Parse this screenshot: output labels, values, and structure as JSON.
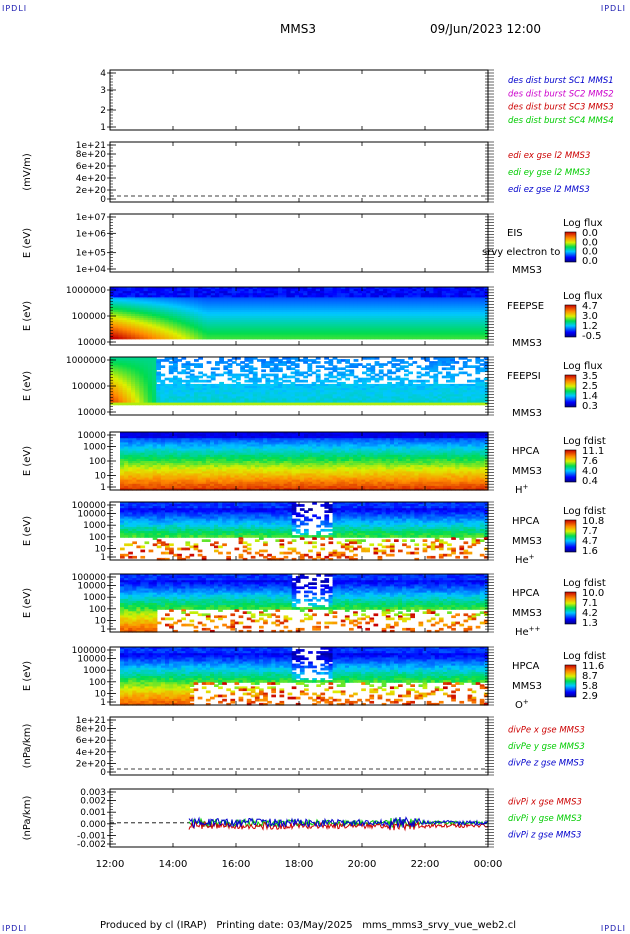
{
  "header": {
    "corner_label": "IPDLI",
    "spacecraft": "MMS3",
    "date_time": "09/Jun/2023 12:00"
  },
  "footer": {
    "text": "Produced by cl (IRAP)   Printing date: 03/May/2025   mms_mms3_srvy_vue_web2.cl"
  },
  "colors": {
    "red": "#cc0000",
    "green": "#00cc00",
    "blue": "#0000cc",
    "magenta": "#cc00cc"
  },
  "chart_data": {
    "type": "heatmap",
    "x_ticks": [
      "12:00",
      "14:00",
      "16:00",
      "18:00",
      "20:00",
      "22:00",
      "00:00"
    ],
    "panels": [
      {
        "id": "p1",
        "type": "line",
        "ylabel": "",
        "y_ticks": [
          "1",
          "2",
          "3",
          "4"
        ],
        "ylim": [
          1,
          4
        ],
        "legend": [
          {
            "text": "des dist burst SC1 MMS1",
            "color": "blue"
          },
          {
            "text": "des dist burst SC2 MMS2",
            "color": "magenta"
          },
          {
            "text": "des dist burst SC3 MMS3",
            "color": "red"
          },
          {
            "text": "des dist burst SC4 MMS4",
            "color": "green"
          }
        ]
      },
      {
        "id": "p2",
        "type": "line",
        "ylabel": "(mV/m)",
        "y_ticks": [
          "0",
          "2e+20",
          "4e+20",
          "6e+20",
          "8e+20",
          "1e+21"
        ],
        "ylim": [
          0,
          1e+21
        ],
        "legend": [
          {
            "text": "edi ex gse l2 MMS3",
            "color": "red"
          },
          {
            "text": "edi ey gse l2 MMS3",
            "color": "green"
          },
          {
            "text": "edi ez gse l2 MMS3",
            "color": "blue"
          }
        ]
      },
      {
        "id": "p3",
        "type": "heatmap",
        "ylabel": "E (eV)",
        "y_ticks": [
          "1e+04",
          "1e+05",
          "1e+06",
          "1e+07"
        ],
        "right_labels": [
          "EIS",
          "MMS3"
        ],
        "overlay_text": "srvy electron to",
        "cbar_title": "Log flux",
        "cbar_ticks": [
          "0.0",
          "0.0",
          "0.0",
          "0.0"
        ]
      },
      {
        "id": "p4",
        "type": "heatmap",
        "ylabel": "E (eV)",
        "y_ticks": [
          "10000",
          "100000",
          "1000000"
        ],
        "right_labels": [
          "FEEPSE",
          "MMS3"
        ],
        "cbar_title": "Log flux",
        "cbar_ticks": [
          "4.7",
          "3.0",
          "1.2",
          "-0.5"
        ]
      },
      {
        "id": "p5",
        "type": "heatmap",
        "ylabel": "E (eV)",
        "y_ticks": [
          "10000",
          "100000",
          "1000000"
        ],
        "right_labels": [
          "FEEPSI",
          "MMS3"
        ],
        "cbar_title": "Log flux",
        "cbar_ticks": [
          "3.5",
          "2.5",
          "1.4",
          "0.3"
        ]
      },
      {
        "id": "p6",
        "type": "heatmap",
        "ylabel": "E (eV)",
        "y_ticks": [
          "1",
          "10",
          "100",
          "1000",
          "10000"
        ],
        "right_labels": [
          "HPCA",
          "MMS3"
        ],
        "species": "H",
        "species_sup": "+",
        "cbar_title": "Log fdist",
        "cbar_ticks": [
          "11.1",
          "7.6",
          "4.0",
          "0.4"
        ]
      },
      {
        "id": "p7",
        "type": "heatmap",
        "ylabel": "E (eV)",
        "y_ticks": [
          "1",
          "10",
          "100",
          "1000",
          "10000",
          "100000"
        ],
        "right_labels": [
          "HPCA",
          "MMS3"
        ],
        "species": "He",
        "species_sup": "+",
        "cbar_title": "Log fdist",
        "cbar_ticks": [
          "10.8",
          "7.7",
          "4.7",
          "1.6"
        ]
      },
      {
        "id": "p8",
        "type": "heatmap",
        "ylabel": "E (eV)",
        "y_ticks": [
          "1",
          "10",
          "100",
          "1000",
          "10000",
          "100000"
        ],
        "right_labels": [
          "HPCA",
          "MMS3"
        ],
        "species": "He",
        "species_sup": "++",
        "cbar_title": "Log fdist",
        "cbar_ticks": [
          "10.0",
          "7.1",
          "4.2",
          "1.3"
        ]
      },
      {
        "id": "p9",
        "type": "heatmap",
        "ylabel": "E (eV)",
        "y_ticks": [
          "1",
          "10",
          "100",
          "1000",
          "10000",
          "100000"
        ],
        "right_labels": [
          "HPCA",
          "MMS3"
        ],
        "species": "O",
        "species_sup": "+",
        "cbar_title": "Log fdist",
        "cbar_ticks": [
          "11.6",
          "8.7",
          "5.8",
          "2.9"
        ]
      },
      {
        "id": "p10",
        "type": "line",
        "ylabel": "(nPa/km)",
        "y_ticks": [
          "0",
          "2e+20",
          "4e+20",
          "6e+20",
          "8e+20",
          "1e+21"
        ],
        "ylim": [
          0,
          1e+21
        ],
        "legend": [
          {
            "text": "divPe x gse MMS3",
            "color": "red"
          },
          {
            "text": "divPe y gse MMS3",
            "color": "green"
          },
          {
            "text": "divPe z gse MMS3",
            "color": "blue"
          }
        ]
      },
      {
        "id": "p11",
        "type": "line",
        "ylabel": "(nPa/km)",
        "y_ticks": [
          "-0.002",
          "-0.001",
          "0.000",
          "0.001",
          "0.002",
          "0.003"
        ],
        "ylim": [
          -0.0025,
          0.0035
        ],
        "legend": [
          {
            "text": "divPi x gse MMS3",
            "color": "red"
          },
          {
            "text": "divPi y gse MMS3",
            "color": "green"
          },
          {
            "text": "divPi z gse MMS3",
            "color": "blue"
          }
        ]
      }
    ]
  }
}
